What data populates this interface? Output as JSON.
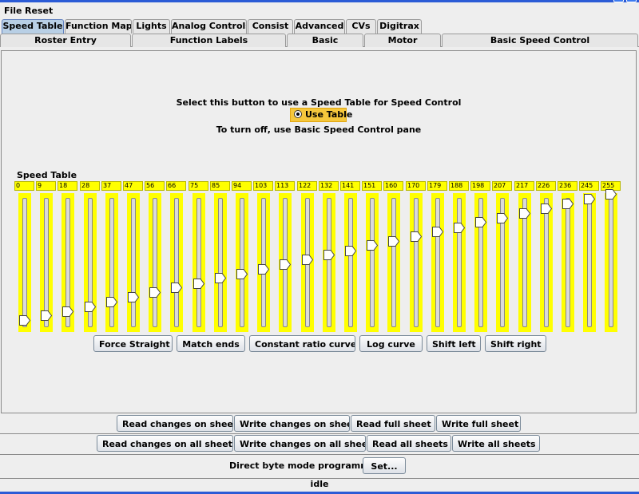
{
  "menu": {
    "file": "File",
    "reset": "Reset"
  },
  "tabs_row1": [
    "Speed Table",
    "Function Map",
    "Lights",
    "Analog Controls",
    "Consist",
    "Advanced",
    "CVs",
    "Digitrax"
  ],
  "tabs_row2": [
    "Roster Entry",
    "Function Labels",
    "Basic",
    "Motor",
    "Basic Speed Control"
  ],
  "selected_tab": "Speed Table",
  "panel": {
    "instruction": "Select this button to use a Speed Table for Speed Control",
    "use_table_label": "Use Table",
    "use_table_selected": true,
    "turn_off_text": "To turn off, use Basic Speed Control pane",
    "speed_table_title": "Speed Table"
  },
  "speed_table": {
    "max": 255,
    "values": [
      0,
      9,
      18,
      28,
      37,
      47,
      56,
      66,
      75,
      85,
      94,
      103,
      113,
      122,
      132,
      141,
      151,
      160,
      170,
      179,
      188,
      198,
      207,
      217,
      226,
      236,
      245,
      255
    ],
    "value_labels": [
      "0",
      "9",
      "18",
      "28",
      "37",
      "47",
      "56",
      "66",
      "75",
      "85",
      "94",
      "103",
      "113",
      "122",
      "132",
      "141",
      "151",
      "160",
      "170",
      "179",
      "188",
      "198",
      "207",
      "217",
      "226",
      "236",
      "245",
      "255"
    ],
    "slider_color": "#ffff00"
  },
  "curve_buttons": [
    "Force Straight",
    "Match ends",
    "Constant ratio curve",
    "Log curve",
    "Shift left",
    "Shift right"
  ],
  "sheet_buttons": [
    "Read changes on sheet",
    "Write changes on sheet",
    "Read full sheet",
    "Write full sheet"
  ],
  "all_sheet_buttons": [
    "Read changes on all sheets",
    "Write changes on all sheets",
    "Read all sheets",
    "Write all sheets"
  ],
  "programming": {
    "mode_text": "Direct byte mode programming",
    "set_button": "Set..."
  },
  "status": "idle",
  "colors": {
    "selected_tab": "#b8cfe5",
    "use_table_highlight": "#f5c73c",
    "window_frame": "#2b5bd6"
  }
}
